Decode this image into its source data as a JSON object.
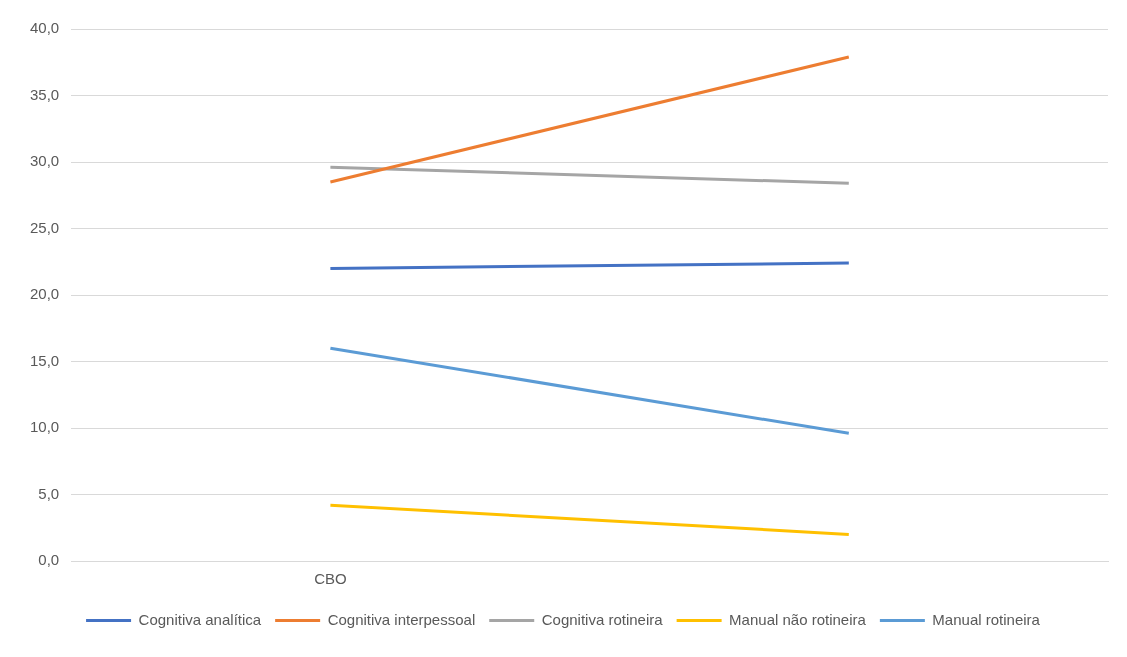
{
  "chart_data": {
    "type": "line",
    "categories": [
      "CBO",
      null
    ],
    "series": [
      {
        "name": "Cognitiva analítica",
        "color": "#4472c4",
        "values": [
          22.0,
          22.4
        ]
      },
      {
        "name": "Cognitiva interpessoal",
        "color": "#ed7d31",
        "values": [
          28.5,
          37.9
        ]
      },
      {
        "name": "Cognitiva rotineira",
        "color": "#a5a5a5",
        "values": [
          29.6,
          28.4
        ]
      },
      {
        "name": "Manual não rotineira",
        "color": "#ffc000",
        "values": [
          4.2,
          2.0
        ]
      },
      {
        "name": "Manual rotineira",
        "color": "#5b9bd5",
        "values": [
          16.0,
          9.6
        ]
      }
    ],
    "ylim": [
      0,
      40
    ],
    "yticks": [
      {
        "value": 0,
        "label": "0,0"
      },
      {
        "value": 5,
        "label": "5,0"
      },
      {
        "value": 10,
        "label": "10,0"
      },
      {
        "value": 15,
        "label": "15,0"
      },
      {
        "value": 20,
        "label": "20,0"
      },
      {
        "value": 25,
        "label": "25,0"
      },
      {
        "value": 30,
        "label": "30,0"
      },
      {
        "value": 35,
        "label": "35,0"
      },
      {
        "value": 40,
        "label": "40,0"
      }
    ],
    "grid": "y",
    "legend": "bottom"
  }
}
